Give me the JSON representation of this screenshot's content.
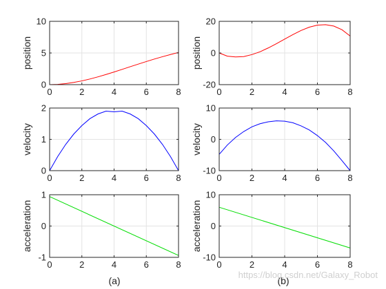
{
  "chart_data": [
    {
      "type": "line",
      "panel": "a-position",
      "ylabel": "position",
      "xlim": [
        0,
        8
      ],
      "ylim": [
        0,
        10
      ],
      "xticks": [
        "0",
        "2",
        "4",
        "6",
        "8"
      ],
      "yticks": [
        "0",
        "5",
        "10"
      ],
      "grid": true,
      "color": "#ff0000",
      "x": [
        0,
        0.5,
        1,
        1.5,
        2,
        2.5,
        3,
        3.5,
        4,
        4.5,
        5,
        5.5,
        6,
        6.5,
        7,
        7.5,
        8
      ],
      "y": [
        0,
        0.04,
        0.16,
        0.35,
        0.59,
        0.89,
        1.23,
        1.6,
        2.0,
        2.41,
        2.83,
        3.24,
        3.65,
        4.04,
        4.41,
        4.76,
        5.08
      ]
    },
    {
      "type": "line",
      "panel": "a-velocity",
      "ylabel": "velocity",
      "xlim": [
        0,
        8
      ],
      "ylim": [
        0,
        2
      ],
      "xticks": [
        "0",
        "2",
        "4",
        "6",
        "8"
      ],
      "yticks": [
        "0",
        "1",
        "2"
      ],
      "grid": true,
      "color": "#0000ff",
      "x": [
        0,
        0.5,
        1,
        1.5,
        2,
        2.5,
        3,
        3.5,
        4,
        4.5,
        5,
        5.5,
        6,
        6.5,
        7,
        7.5,
        8
      ],
      "y": [
        0,
        0.45,
        0.84,
        1.17,
        1.44,
        1.66,
        1.81,
        1.9,
        1.88,
        1.9,
        1.81,
        1.66,
        1.44,
        1.17,
        0.84,
        0.45,
        0
      ]
    },
    {
      "type": "line",
      "panel": "a-acceleration",
      "ylabel": "acceleration",
      "xlim": [
        0,
        8
      ],
      "ylim": [
        -1,
        1
      ],
      "xticks": [
        "0",
        "2",
        "4",
        "6",
        "8"
      ],
      "yticks": [
        "-1",
        "0",
        "1"
      ],
      "grid": true,
      "color": "#00dd00",
      "x": [
        0,
        8
      ],
      "y": [
        0.94,
        -0.94
      ]
    },
    {
      "type": "line",
      "panel": "b-position",
      "ylabel": "position",
      "xlim": [
        0,
        8
      ],
      "ylim": [
        -20,
        20
      ],
      "xticks": [
        "0",
        "2",
        "4",
        "6",
        "8"
      ],
      "yticks": [
        "-20",
        "0",
        "20"
      ],
      "grid": true,
      "color": "#ff0000",
      "x": [
        0,
        0.5,
        1,
        1.5,
        2,
        2.5,
        3,
        3.5,
        4,
        4.5,
        5,
        5.5,
        6,
        6.5,
        7,
        7.5,
        8
      ],
      "y": [
        0,
        -2.0,
        -2.5,
        -2.3,
        -1.0,
        0.8,
        3.2,
        5.9,
        8.8,
        11.6,
        14.2,
        16.3,
        17.6,
        17.9,
        17.0,
        14.7,
        10.7
      ]
    },
    {
      "type": "line",
      "panel": "b-velocity",
      "ylabel": "velocity",
      "xlim": [
        0,
        8
      ],
      "ylim": [
        -10,
        10
      ],
      "xticks": [
        "0",
        "2",
        "4",
        "6",
        "8"
      ],
      "yticks": [
        "-10",
        "0",
        "10"
      ],
      "grid": true,
      "color": "#0000ff",
      "x": [
        0,
        0.5,
        1,
        1.5,
        2,
        2.5,
        3,
        3.5,
        4,
        4.5,
        5,
        5.5,
        6,
        6.5,
        7,
        7.5,
        8
      ],
      "y": [
        -4.8,
        -1.8,
        0.6,
        2.5,
        4.0,
        5.0,
        5.6,
        5.9,
        5.8,
        5.3,
        4.3,
        3.0,
        1.2,
        -1.0,
        -3.7,
        -6.8,
        -10.0
      ]
    },
    {
      "type": "line",
      "panel": "b-acceleration",
      "ylabel": "acceleration",
      "xlim": [
        0,
        8
      ],
      "ylim": [
        -10,
        10
      ],
      "xticks": [
        "0",
        "2",
        "4",
        "6",
        "8"
      ],
      "yticks": [
        "-10",
        "0",
        "10"
      ],
      "grid": true,
      "color": "#00dd00",
      "x": [
        0,
        8
      ],
      "y": [
        6.0,
        -7.0
      ]
    }
  ],
  "captions": {
    "left": "(a)",
    "right": "(b)"
  },
  "watermark": "https://blog.csdn.net/Galaxy_Robot"
}
